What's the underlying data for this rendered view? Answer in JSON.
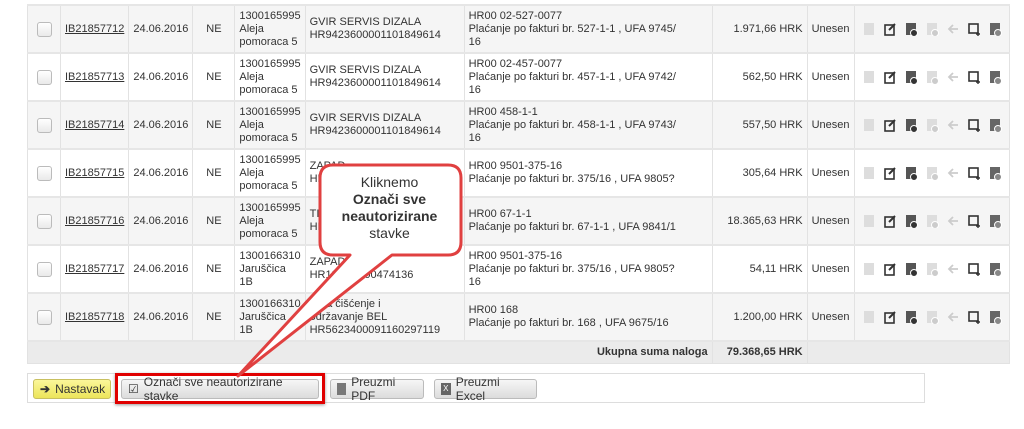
{
  "rows": [
    {
      "id": "IB21857712",
      "date": "24.06.2016",
      "flag": "NE",
      "addr": [
        "1300165995",
        "Aleja",
        "pomoraca 5"
      ],
      "payee": [
        "GVIR SERVIS DIZALA",
        "HR9423600001101849614"
      ],
      "desc": [
        "HR00 02-527-0077",
        "Plaćanje po fakturi br. 527-1-1 , UFA 9745/",
        "16"
      ],
      "amount": "1.971,66 HRK",
      "status": "Unesen"
    },
    {
      "id": "IB21857713",
      "date": "24.06.2016",
      "flag": "NE",
      "addr": [
        "1300165995",
        "Aleja",
        "pomoraca 5"
      ],
      "payee": [
        "GVIR SERVIS DIZALA",
        "HR9423600001101849614"
      ],
      "desc": [
        "HR00 02-457-0077",
        "Plaćanje po fakturi br. 457-1-1 , UFA 9742/",
        "16"
      ],
      "amount": "562,50 HRK",
      "status": "Unesen"
    },
    {
      "id": "IB21857714",
      "date": "24.06.2016",
      "flag": "NE",
      "addr": [
        "1300165995",
        "Aleja",
        "pomoraca 5"
      ],
      "payee": [
        "GVIR SERVIS DIZALA",
        "HR9423600001101849614"
      ],
      "desc": [
        "HR00 458-1-1",
        "Plaćanje po fakturi br. 458-1-1 , UFA 9743/",
        "16"
      ],
      "amount": "557,50 HRK",
      "status": "Unesen"
    },
    {
      "id": "IB21857715",
      "date": "24.06.2016",
      "flag": "NE",
      "addr": [
        "1300165995",
        "Aleja",
        "pomoraca 5"
      ],
      "payee": [
        "ZAPAD",
        "HR"
      ],
      "desc": [
        "HR00 9501-375-16",
        "Plaćanje po fakturi br. 375/16 , UFA 9805?",
        ""
      ],
      "amount": "305,64 HRK",
      "status": "Unesen"
    },
    {
      "id": "IB21857716",
      "date": "24.06.2016",
      "flag": "NE",
      "addr": [
        "1300165995",
        "Aleja",
        "pomoraca 5"
      ],
      "payee": [
        "TIM",
        "HR"
      ],
      "desc": [
        "HR00 67-1-1",
        "Plaćanje po fakturi br. 67-1-1 , UFA 9841/1",
        ""
      ],
      "amount": "18.365,63 HRK",
      "status": "Unesen"
    },
    {
      "id": "IB21857717",
      "date": "24.06.2016",
      "flag": "NE",
      "addr": [
        "1300166310",
        "Jaruščica 1B",
        ""
      ],
      "payee": [
        "ZAPAD d.o.o.",
        "HR12 081100474136"
      ],
      "desc": [
        "HR00 9501-375-16",
        "Plaćanje po fakturi br. 375/16 , UFA 9805?",
        "16"
      ],
      "amount": "54,11 HRK",
      "status": "Unesen"
    },
    {
      "id": "IB21857718",
      "date": "24.06.2016",
      "flag": "NE",
      "addr": [
        "1300166310",
        "Jaruščica 1B",
        ""
      ],
      "payee": [
        "is za čišćenje i",
        "održavanje BEL",
        "HR5623400091160297119"
      ],
      "desc": [
        "HR00 168",
        "Plaćanje po fakturi br. 168 , UFA 9675/16",
        ""
      ],
      "amount": "1.200,00 HRK",
      "status": "Unesen"
    }
  ],
  "row_icons": [
    "document-icon",
    "edit-icon",
    "authorize-icon",
    "sign-icon",
    "back-arrow-icon",
    "add-icon",
    "delete-icon"
  ],
  "total": {
    "label": "Ukupna suma naloga",
    "value": "79.368,65 HRK"
  },
  "toolbar": {
    "continue": "Nastavak",
    "select_all": "Označi sve neautorizirane stavke",
    "pdf": "Preuzmi PDF",
    "excel": "Preuzmi Excel"
  },
  "callout": {
    "line1": "Kliknemo",
    "bold1": "Označi sve",
    "bold2": "neautorizirane",
    "line4": "stavke"
  },
  "colors": {
    "highlight": "#e00000",
    "callout_border": "#e04040",
    "continue_button": "#f5f07a"
  }
}
